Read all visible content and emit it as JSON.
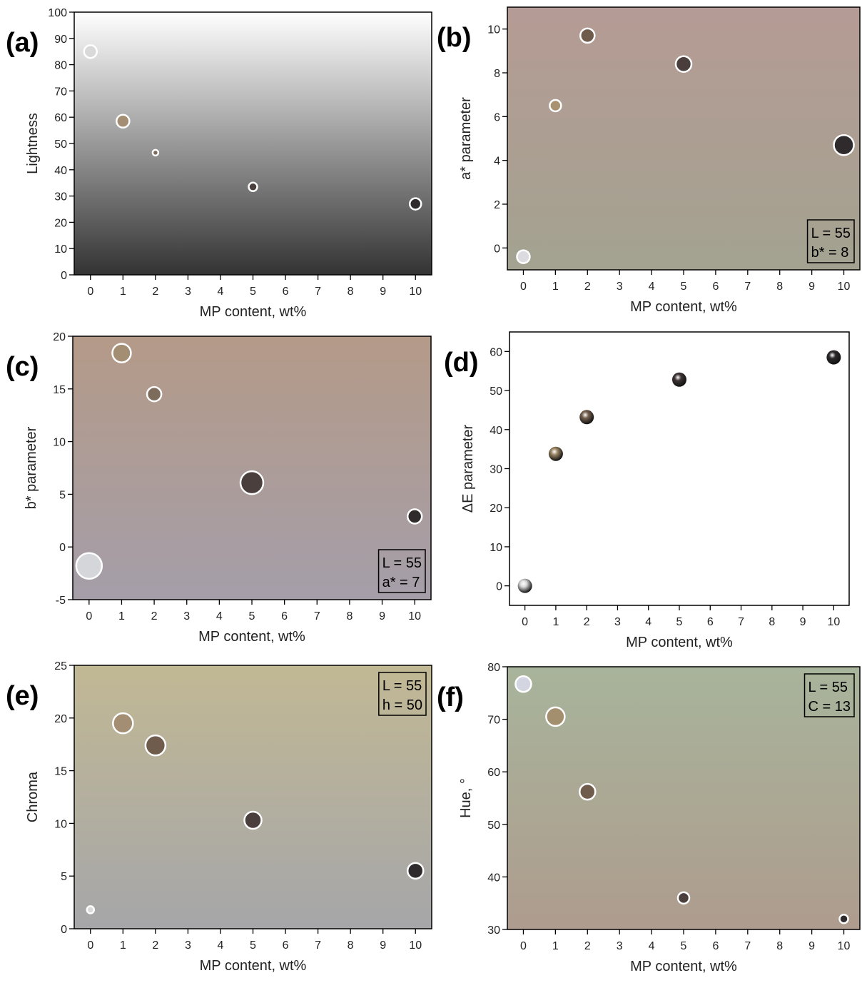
{
  "chart_data": [
    {
      "type": "scatter",
      "panel_label": "(a)",
      "x_label": "MP content, wt%",
      "y_label": "Lightness",
      "x": [
        0,
        1,
        2,
        5,
        10
      ],
      "values": [
        85,
        58.5,
        46.5,
        33.5,
        27
      ],
      "colors": [
        "#d9d9d9",
        "#a38e74",
        "#7d6b5b",
        "#4b3f3d",
        "#2f2a2c"
      ],
      "xlim": [
        -0.5,
        10.5
      ],
      "xticks": [
        0,
        1,
        2,
        3,
        4,
        5,
        6,
        7,
        8,
        9,
        10
      ],
      "ylim": [
        0,
        100
      ],
      "yticks": [
        0,
        10,
        20,
        30,
        40,
        50,
        60,
        70,
        80,
        90,
        100
      ],
      "background": [
        "#ffffff",
        "#333333"
      ]
    },
    {
      "type": "scatter",
      "panel_label": "(b)",
      "x_label": "MP content, wt%",
      "y_label": "a* parameter",
      "x": [
        0,
        1,
        2,
        5,
        10
      ],
      "values": [
        -0.4,
        6.5,
        9.7,
        8.4,
        4.7
      ],
      "colors": [
        "#dcdce0",
        "#a89272",
        "#6e5b4b",
        "#4a3e3c",
        "#2f2a2c"
      ],
      "xlim": [
        -0.5,
        10.5
      ],
      "xticks": [
        0,
        1,
        2,
        3,
        4,
        5,
        6,
        7,
        8,
        9,
        10
      ],
      "ylim": [
        -1,
        11
      ],
      "yticks": [
        0,
        2,
        4,
        6,
        8,
        10
      ],
      "background": [
        "#b59b95",
        "#a3a290"
      ],
      "annotation": [
        "L = 55",
        "b* = 8"
      ],
      "annotation_corner": "lower right"
    },
    {
      "type": "scatter",
      "panel_label": "(c)",
      "x_label": "MP content, wt%",
      "y_label": "b* parameter",
      "x": [
        0,
        1,
        2,
        5,
        10
      ],
      "values": [
        -1.8,
        18.4,
        14.5,
        6.1,
        2.9
      ],
      "colors": [
        "#d5d6da",
        "#a38e74",
        "#7d6b5b",
        "#4b3f3d",
        "#2f2a2c"
      ],
      "xlim": [
        -0.5,
        10.5
      ],
      "xticks": [
        0,
        1,
        2,
        3,
        4,
        5,
        6,
        7,
        8,
        9,
        10
      ],
      "ylim": [
        -5,
        20
      ],
      "yticks": [
        -5,
        0,
        5,
        10,
        15,
        20
      ],
      "background": [
        "#b49a88",
        "#a59ea9"
      ],
      "annotation": [
        "L = 55",
        "a* = 7"
      ],
      "annotation_corner": "lower right"
    },
    {
      "type": "scatter",
      "panel_label": "(d)",
      "x_label": "MP content, wt%",
      "y_label": "ΔE parameter",
      "x": [
        0,
        1,
        2,
        5,
        10
      ],
      "values": [
        0,
        33.8,
        43.2,
        52.8,
        58.5
      ],
      "colors": [
        "#d8d8d8",
        "#9a8564",
        "#75614f",
        "#3f3535",
        "#2e2a2c"
      ],
      "xlim": [
        -0.5,
        10.5
      ],
      "xticks": [
        0,
        1,
        2,
        3,
        4,
        5,
        6,
        7,
        8,
        9,
        10
      ],
      "ylim": [
        -5,
        65
      ],
      "yticks": [
        0,
        10,
        20,
        30,
        40,
        50,
        60
      ],
      "marker_style": "sphere"
    },
    {
      "type": "scatter",
      "panel_label": "(e)",
      "x_label": "MP content, wt%",
      "y_label": "Chroma",
      "x": [
        0,
        1,
        2,
        5,
        10
      ],
      "values": [
        1.8,
        19.5,
        17.4,
        10.3,
        5.5
      ],
      "colors": [
        "#dadada",
        "#a38e74",
        "#6f5c4c",
        "#4b3f3d",
        "#2f2a2c"
      ],
      "xlim": [
        -0.5,
        10.5
      ],
      "xticks": [
        0,
        1,
        2,
        3,
        4,
        5,
        6,
        7,
        8,
        9,
        10
      ],
      "ylim": [
        0,
        25
      ],
      "yticks": [
        0,
        5,
        10,
        15,
        20,
        25
      ],
      "background": [
        "#c1b894",
        "#a6a6a9"
      ],
      "annotation": [
        "L = 55",
        "h = 50"
      ],
      "annotation_corner": "upper right"
    },
    {
      "type": "scatter",
      "panel_label": "(f)",
      "x_label": "MP content, wt%",
      "y_label": "Hue, °",
      "x": [
        0,
        1,
        2,
        5,
        10
      ],
      "values": [
        76.7,
        70.5,
        56.2,
        36,
        32
      ],
      "colors": [
        "#d3d6e0",
        "#a38e6e",
        "#6f5c4c",
        "#4b3f3d",
        "#2f2a2c"
      ],
      "xlim": [
        -0.5,
        10.5
      ],
      "xticks": [
        0,
        1,
        2,
        3,
        4,
        5,
        6,
        7,
        8,
        9,
        10
      ],
      "ylim": [
        30,
        80
      ],
      "yticks": [
        30,
        40,
        50,
        60,
        70,
        80
      ],
      "background": [
        "#a8b49b",
        "#ae9c8e"
      ],
      "annotation": [
        "L = 55",
        "C = 13"
      ],
      "annotation_corner": "upper right"
    }
  ]
}
